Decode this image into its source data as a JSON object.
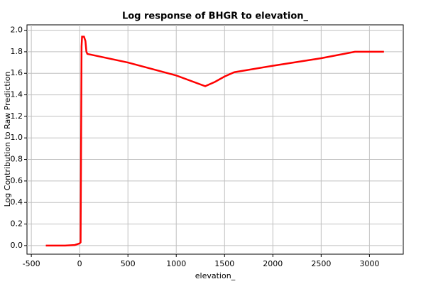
{
  "chart_data": {
    "type": "line",
    "title": "Log response of BHGR to elevation_",
    "x_label": "elevation_",
    "y_label": "Log Contribution to Raw Prediction",
    "x": [
      -350,
      -150,
      -50,
      0,
      10,
      20,
      25,
      45,
      60,
      70,
      80,
      500,
      1000,
      1300,
      1400,
      1500,
      1600,
      2000,
      2500,
      2850,
      3150
    ],
    "series": [
      {
        "name": "BHGR",
        "color": "#ff0000",
        "values": [
          0,
          0,
          0.005,
          0.02,
          0.03,
          1.85,
          1.94,
          1.94,
          1.9,
          1.8,
          1.78,
          1.7,
          1.58,
          1.48,
          1.52,
          1.57,
          1.61,
          1.67,
          1.74,
          1.8,
          1.8
        ]
      }
    ],
    "xlim": [
      -545,
      3350
    ],
    "ylim": [
      -0.08,
      2.05
    ],
    "xticks": [
      -500,
      0,
      500,
      1000,
      1500,
      2000,
      2500,
      3000
    ],
    "yticks": [
      {
        "value": 0,
        "label": "0.0"
      },
      {
        "value": 0.2,
        "label": "0.2"
      },
      {
        "value": 0.4,
        "label": "0.4"
      },
      {
        "value": 0.6,
        "label": "0.6"
      },
      {
        "value": 0.8,
        "label": "0.8"
      },
      {
        "value": 1,
        "label": "1.0"
      },
      {
        "value": 1.2,
        "label": "1.2"
      },
      {
        "value": 1.4,
        "label": "1.4"
      },
      {
        "value": 1.6,
        "label": "1.6"
      },
      {
        "value": 1.8,
        "label": "1.8"
      },
      {
        "value": 2,
        "label": "2.0"
      }
    ],
    "grid": true
  }
}
